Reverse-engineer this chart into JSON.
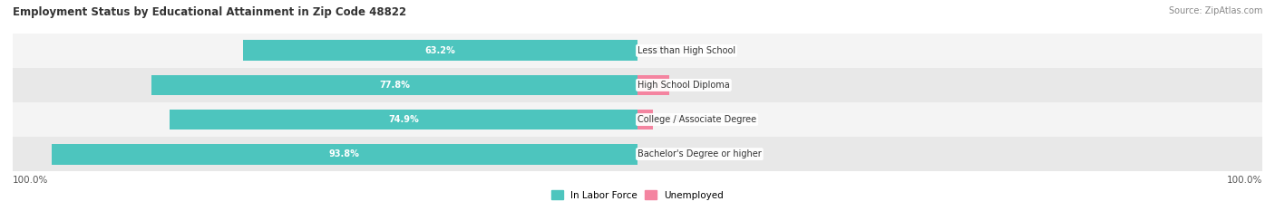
{
  "title": "Employment Status by Educational Attainment in Zip Code 48822",
  "source": "Source: ZipAtlas.com",
  "categories": [
    "Less than High School",
    "High School Diploma",
    "College / Associate Degree",
    "Bachelor's Degree or higher"
  ],
  "labor_force": [
    63.2,
    77.8,
    74.9,
    93.8
  ],
  "unemployed": [
    0.0,
    5.1,
    2.4,
    0.0
  ],
  "labor_force_color": "#4dc5be",
  "unemployed_color": "#f484a0",
  "row_bg_colors_light": "#f4f4f4",
  "row_bg_colors_dark": "#e8e8e8",
  "label_color_lf": "#ffffff",
  "label_color_value": "#444444",
  "max_value": 100.0,
  "x_left_label": "100.0%",
  "x_right_label": "100.0%",
  "legend_lf": "In Labor Force",
  "legend_unemp": "Unemployed",
  "title_fontsize": 8.5,
  "source_fontsize": 7,
  "bar_label_fontsize": 7,
  "category_fontsize": 7,
  "legend_fontsize": 7.5,
  "axis_label_fontsize": 7.5,
  "bar_height": 0.6
}
